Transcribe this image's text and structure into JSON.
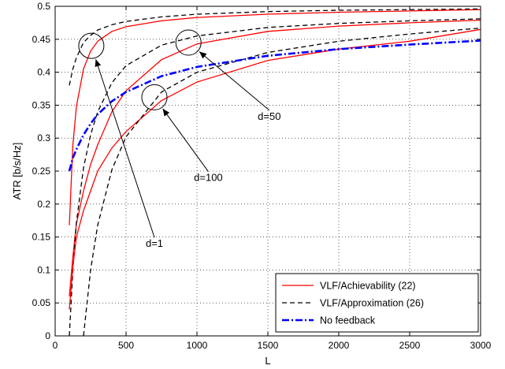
{
  "chart_data": {
    "type": "line",
    "xlabel": "L",
    "ylabel": "ATR [b/s/Hz]",
    "xlim": [
      0,
      3000
    ],
    "ylim": [
      0,
      0.5
    ],
    "xticks": [
      0,
      500,
      1000,
      1500,
      2000,
      2500,
      3000
    ],
    "yticks": [
      0,
      0.05,
      0.1,
      0.15,
      0.2,
      0.25,
      0.3,
      0.35,
      0.4,
      0.45,
      0.5
    ],
    "grid": "dotted",
    "legend_position": "bottom-right",
    "legend": [
      {
        "label": "VLF/Achievability (22)",
        "color": "#ff0000",
        "style": "solid"
      },
      {
        "label": "VLF/Approximation (26)",
        "color": "#000000",
        "style": "dashed"
      },
      {
        "label": "No feedback",
        "color": "#0000ff",
        "style": "dashdot"
      }
    ],
    "series": [
      {
        "group": "VLF/Achievability (22)",
        "curve": "d=1",
        "color": "#ff0000",
        "style": "solid",
        "x": [
          100,
          125,
          150,
          200,
          250,
          300,
          400,
          500,
          750,
          1000,
          1500,
          2000,
          2500,
          3000
        ],
        "y": [
          0.168,
          0.29,
          0.348,
          0.405,
          0.432,
          0.447,
          0.462,
          0.469,
          0.478,
          0.483,
          0.488,
          0.491,
          0.493,
          0.495
        ]
      },
      {
        "group": "VLF/Approximation (26)",
        "curve": "d=1",
        "color": "#000000",
        "style": "dashed",
        "x": [
          100,
          125,
          150,
          200,
          250,
          300,
          400,
          500,
          750,
          1000,
          1500,
          2000,
          2500,
          3000
        ],
        "y": [
          0.38,
          0.405,
          0.422,
          0.445,
          0.456,
          0.464,
          0.472,
          0.477,
          0.484,
          0.488,
          0.492,
          0.494,
          0.495,
          0.496
        ]
      },
      {
        "group": "VLF/Achievability (22)",
        "curve": "d=50",
        "color": "#ff0000",
        "style": "solid",
        "x": [
          100,
          125,
          150,
          200,
          250,
          300,
          400,
          500,
          750,
          1000,
          1500,
          2000,
          2500,
          3000
        ],
        "y": [
          0.06,
          0.12,
          0.17,
          0.22,
          0.26,
          0.29,
          0.34,
          0.372,
          0.419,
          0.443,
          0.462,
          0.47,
          0.475,
          0.479
        ]
      },
      {
        "group": "VLF/Approximation (26)",
        "curve": "d=50",
        "color": "#000000",
        "style": "dashed",
        "x": [
          100,
          125,
          150,
          200,
          250,
          300,
          400,
          500,
          750,
          1000,
          1500,
          2000,
          2500,
          3000
        ],
        "y": [
          0.0,
          0.1,
          0.172,
          0.255,
          0.305,
          0.34,
          0.384,
          0.41,
          0.441,
          0.455,
          0.468,
          0.474,
          0.478,
          0.481
        ]
      },
      {
        "group": "VLF/Achievability (22)",
        "curve": "d=100",
        "color": "#ff0000",
        "style": "solid",
        "x": [
          100,
          125,
          150,
          200,
          250,
          300,
          400,
          500,
          750,
          1000,
          1500,
          2000,
          2500,
          3000
        ],
        "y": [
          0.04,
          0.105,
          0.15,
          0.19,
          0.22,
          0.25,
          0.285,
          0.31,
          0.357,
          0.385,
          0.418,
          0.435,
          0.447,
          0.465
        ]
      },
      {
        "group": "VLF/Approximation (26)",
        "curve": "d=100",
        "color": "#000000",
        "style": "dashed",
        "x": [
          200,
          250,
          300,
          400,
          500,
          750,
          1000,
          1500,
          2000,
          2500,
          3000
        ],
        "y": [
          0.0,
          0.1,
          0.168,
          0.252,
          0.302,
          0.37,
          0.4,
          0.43,
          0.447,
          0.458,
          0.467
        ]
      },
      {
        "group": "No feedback",
        "curve": "",
        "color": "#0000ff",
        "style": "dashdot",
        "x": [
          100,
          125,
          150,
          200,
          250,
          300,
          400,
          500,
          750,
          1000,
          1500,
          2000,
          2500,
          3000
        ],
        "y": [
          0.25,
          0.27,
          0.283,
          0.305,
          0.322,
          0.336,
          0.356,
          0.37,
          0.394,
          0.408,
          0.425,
          0.435,
          0.442,
          0.448
        ]
      }
    ],
    "annotations": [
      {
        "label": "d=1",
        "circle_at": [
          255,
          0.44
        ],
        "text_at": [
          700,
          0.135
        ]
      },
      {
        "label": "d=50",
        "circle_at": [
          940,
          0.445
        ],
        "text_at": [
          1510,
          0.328
        ]
      },
      {
        "label": "d=100",
        "circle_at": [
          700,
          0.362
        ],
        "text_at": [
          1080,
          0.235
        ]
      }
    ]
  }
}
